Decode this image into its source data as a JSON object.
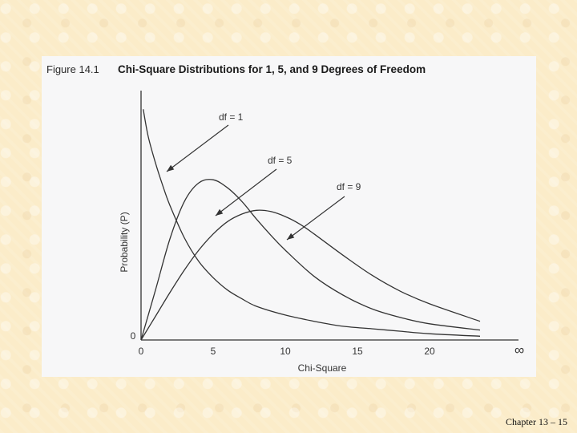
{
  "slide": {
    "footer": "Chapter 13 – 15"
  },
  "figure": {
    "number": "Figure 14.1",
    "title": "Chi-Square Distributions for 1, 5, and 9 Degrees of Freedom"
  },
  "chart_data": {
    "type": "line",
    "xlabel": "Chi-Square",
    "ylabel": "Probability (P)",
    "x_ticks": [
      "0",
      "5",
      "10",
      "15",
      "20"
    ],
    "x_infinity_label": "∞",
    "y_ticks": [
      "0"
    ],
    "xlim": [
      0,
      26
    ],
    "ylim": [
      0,
      0.2
    ],
    "grid": false,
    "series": [
      {
        "name": "df = 1",
        "x": [
          0.15,
          0.5,
          1,
          1.5,
          2,
          3,
          4,
          5,
          6,
          7,
          8,
          10,
          12,
          14,
          16,
          18,
          20,
          23.5
        ],
        "y": [
          0.185,
          0.163,
          0.142,
          0.124,
          0.108,
          0.082,
          0.063,
          0.05,
          0.04,
          0.033,
          0.027,
          0.02,
          0.015,
          0.011,
          0.009,
          0.007,
          0.005,
          0.003
        ]
      },
      {
        "name": "df = 5",
        "x": [
          0,
          1,
          2,
          3,
          4,
          5,
          6,
          7,
          8,
          9,
          10,
          12,
          14,
          16,
          18,
          20,
          23.5
        ],
        "y": [
          0,
          0.04,
          0.081,
          0.111,
          0.126,
          0.1285,
          0.122,
          0.111,
          0.097,
          0.084,
          0.072,
          0.051,
          0.036,
          0.025,
          0.018,
          0.013,
          0.008
        ]
      },
      {
        "name": "df = 9",
        "x": [
          0,
          1,
          2,
          3,
          4,
          5,
          6,
          7,
          8,
          9,
          10,
          11,
          12,
          14,
          16,
          18,
          20,
          23.5
        ],
        "y": [
          0,
          0.019,
          0.038,
          0.056,
          0.072,
          0.085,
          0.095,
          0.101,
          0.104,
          0.103,
          0.099,
          0.093,
          0.085,
          0.068,
          0.052,
          0.039,
          0.029,
          0.015
        ]
      }
    ],
    "annotations": [
      {
        "text": "df = 1",
        "series": 0
      },
      {
        "text": "df = 5",
        "series": 1
      },
      {
        "text": "df = 9",
        "series": 2
      }
    ]
  }
}
